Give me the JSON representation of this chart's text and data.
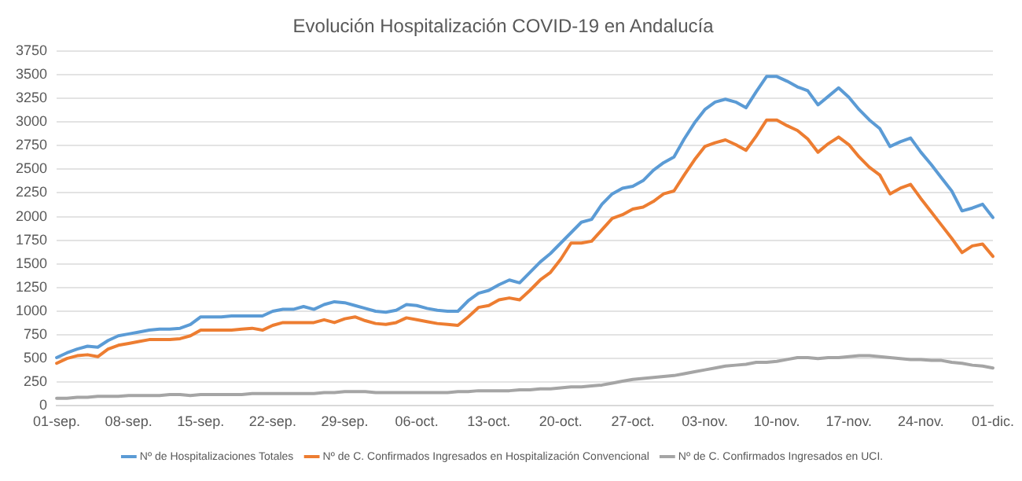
{
  "chart_data": {
    "type": "line",
    "title": "Evolución Hospitalización COVID-19 en Andalucía",
    "categories": [
      "01-sep.",
      null,
      null,
      null,
      null,
      null,
      null,
      "08-sep.",
      null,
      null,
      null,
      null,
      null,
      null,
      "15-sep.",
      null,
      null,
      null,
      null,
      null,
      null,
      "22-sep.",
      null,
      null,
      null,
      null,
      null,
      null,
      "29-sep.",
      null,
      null,
      null,
      null,
      null,
      null,
      "06-oct.",
      null,
      null,
      null,
      null,
      null,
      null,
      "13-oct.",
      null,
      null,
      null,
      null,
      null,
      null,
      "20-oct.",
      null,
      null,
      null,
      null,
      null,
      null,
      "27-oct.",
      null,
      null,
      null,
      null,
      null,
      null,
      "03-nov.",
      null,
      null,
      null,
      null,
      null,
      null,
      "10-nov.",
      null,
      null,
      null,
      null,
      null,
      null,
      "17-nov.",
      null,
      null,
      null,
      null,
      null,
      null,
      "24-nov.",
      null,
      null,
      null,
      null,
      null,
      null,
      "01-dic."
    ],
    "series": [
      {
        "name": "Nº de Hospitalizaciones Totales",
        "color": "#5b9bd5",
        "values": [
          510,
          560,
          600,
          630,
          620,
          690,
          740,
          760,
          780,
          800,
          810,
          810,
          820,
          860,
          940,
          940,
          940,
          950,
          950,
          950,
          950,
          1000,
          1020,
          1020,
          1050,
          1020,
          1070,
          1100,
          1090,
          1060,
          1030,
          1000,
          990,
          1010,
          1070,
          1060,
          1030,
          1010,
          1000,
          1000,
          1110,
          1190,
          1220,
          1280,
          1330,
          1300,
          1410,
          1520,
          1610,
          1720,
          1830,
          1940,
          1970,
          2130,
          2240,
          2300,
          2320,
          2380,
          2490,
          2570,
          2630,
          2820,
          2990,
          3130,
          3210,
          3240,
          3210,
          3150,
          3320,
          3480,
          3480,
          3430,
          3370,
          3330,
          3180,
          3270,
          3360,
          3260,
          3130,
          3020,
          2930,
          2740,
          2790,
          2830,
          2680,
          2550,
          2410,
          2270,
          2060,
          2090,
          2130,
          1990
        ]
      },
      {
        "name": "Nº de C. Confirmados Ingresados en Hospitalización Convencional",
        "color": "#ed7d31",
        "values": [
          450,
          500,
          530,
          540,
          520,
          600,
          640,
          660,
          680,
          700,
          700,
          700,
          710,
          740,
          800,
          800,
          800,
          800,
          810,
          820,
          800,
          850,
          880,
          880,
          880,
          880,
          910,
          880,
          920,
          940,
          900,
          870,
          860,
          880,
          930,
          910,
          890,
          870,
          860,
          850,
          940,
          1040,
          1060,
          1120,
          1140,
          1120,
          1220,
          1330,
          1410,
          1550,
          1720,
          1720,
          1740,
          1860,
          1980,
          2020,
          2080,
          2100,
          2160,
          2240,
          2270,
          2440,
          2600,
          2740,
          2780,
          2810,
          2760,
          2700,
          2850,
          3020,
          3020,
          2960,
          2910,
          2820,
          2680,
          2770,
          2840,
          2760,
          2630,
          2520,
          2440,
          2240,
          2300,
          2340,
          2190,
          2050,
          1910,
          1770,
          1620,
          1690,
          1710,
          1580
        ]
      },
      {
        "name": "Nº de C. Confirmados Ingresados en UCI.",
        "color": "#a5a5a5",
        "values": [
          80,
          80,
          90,
          90,
          100,
          100,
          100,
          110,
          110,
          110,
          110,
          120,
          120,
          110,
          120,
          120,
          120,
          120,
          120,
          130,
          130,
          130,
          130,
          130,
          130,
          130,
          140,
          140,
          150,
          150,
          150,
          140,
          140,
          140,
          140,
          140,
          140,
          140,
          140,
          150,
          150,
          160,
          160,
          160,
          160,
          170,
          170,
          180,
          180,
          190,
          200,
          200,
          210,
          220,
          240,
          260,
          280,
          290,
          300,
          310,
          320,
          340,
          360,
          380,
          400,
          420,
          430,
          440,
          460,
          460,
          470,
          490,
          510,
          510,
          500,
          510,
          510,
          520,
          530,
          530,
          520,
          510,
          500,
          490,
          490,
          480,
          480,
          460,
          450,
          430,
          420,
          400
        ]
      }
    ],
    "ylim": [
      0,
      3750
    ],
    "yticks": [
      0,
      250,
      500,
      750,
      1000,
      1250,
      1500,
      1750,
      2000,
      2250,
      2500,
      2750,
      3000,
      3250,
      3500,
      3750
    ],
    "grid": "y",
    "legend": "bottom",
    "marker": "none",
    "line_style": "solid"
  }
}
